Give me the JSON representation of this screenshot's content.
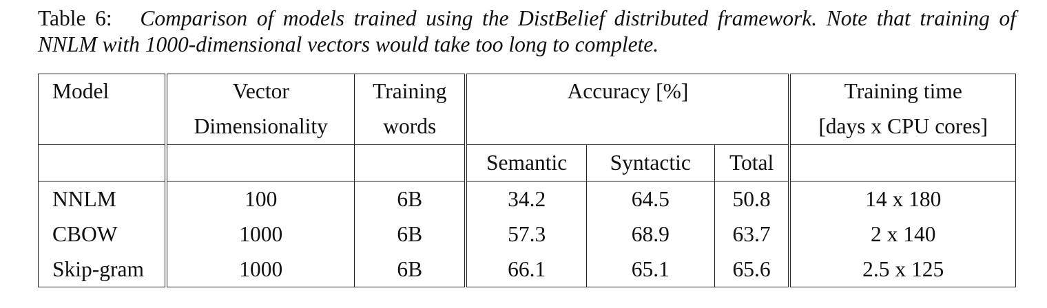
{
  "caption": {
    "label": "Table 6:",
    "text": "Comparison of models trained using the DistBelief distributed framework. Note that training of NNLM with 1000-dimensional vectors would take too long to complete."
  },
  "table": {
    "headers": {
      "model": "Model",
      "vector_line1": "Vector",
      "vector_line2": "Dimensionality",
      "training_line1": "Training",
      "training_line2": "words",
      "accuracy": "Accuracy [%]",
      "time_line1": "Training time",
      "time_line2": "[days x CPU cores]",
      "semantic": "Semantic",
      "syntactic": "Syntactic",
      "total": "Total"
    },
    "rows": [
      {
        "model": "NNLM",
        "dim": "100",
        "words": "6B",
        "semantic": "34.2",
        "syntactic": "64.5",
        "total": "50.8",
        "time": "14 x 180"
      },
      {
        "model": "CBOW",
        "dim": "1000",
        "words": "6B",
        "semantic": "57.3",
        "syntactic": "68.9",
        "total": "63.7",
        "time": "2 x 140"
      },
      {
        "model": "Skip-gram",
        "dim": "1000",
        "words": "6B",
        "semantic": "66.1",
        "syntactic": "65.1",
        "total": "65.6",
        "time": "2.5 x 125"
      }
    ]
  }
}
